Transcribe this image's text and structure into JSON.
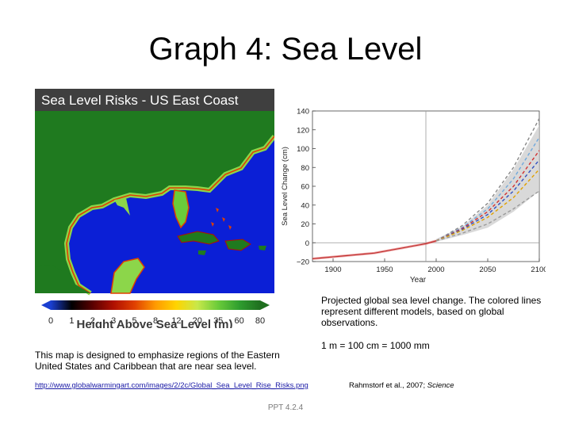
{
  "slide": {
    "title": "Graph 4: Sea Level",
    "footer": "PPT 4.2.4"
  },
  "map": {
    "title": "Sea Level Risks - US East Coast",
    "legend_title": "Height Above Sea Level (m)",
    "legend_ticks": [
      "0",
      "1",
      "2",
      "3",
      "5",
      "8",
      "12",
      "20",
      "35",
      "60",
      "80"
    ],
    "colors": {
      "title_bar": "#3f3f3f",
      "ocean": "#0b1fd6",
      "land": "#1f7a1f",
      "low_land": "#8cd64a"
    },
    "legend_colors": [
      "#1a3fd1",
      "#000000",
      "#5a0000",
      "#b01000",
      "#e04000",
      "#ff9a00",
      "#ffd400",
      "#c8e84a",
      "#6acb3a",
      "#2f9e2f",
      "#1f6f1f"
    ],
    "caption": "This map is designed to emphasize regions of the Eastern United States and Caribbean that are near sea level.",
    "source_url": "http://www.globalwarmingart.com/images/2/2c/Global_Sea_Level_Rise_Risks.png"
  },
  "chart_data": {
    "type": "line",
    "title": "",
    "xlabel": "Year",
    "ylabel": "Sea Level Change (cm)",
    "xlim": [
      1880,
      2100
    ],
    "ylim": [
      -20,
      140
    ],
    "xticks": [
      1900,
      1950,
      2000,
      2050,
      2100
    ],
    "yticks": [
      -20,
      0,
      20,
      40,
      60,
      80,
      100,
      120,
      140
    ],
    "reference_year": 1990,
    "observed": {
      "x": [
        1880,
        1890,
        1900,
        1910,
        1920,
        1930,
        1940,
        1950,
        1960,
        1970,
        1980,
        1990,
        2000
      ],
      "y": [
        -17,
        -16,
        -15,
        -14,
        -13,
        -12,
        -11,
        -9,
        -7,
        -5,
        -3,
        -1,
        2
      ]
    },
    "projection_band": {
      "x": [
        2000,
        2025,
        2050,
        2075,
        2100
      ],
      "lower": [
        1,
        8,
        16,
        33,
        55
      ],
      "upper": [
        4,
        17,
        40,
        78,
        125
      ]
    },
    "projections": [
      {
        "color": "#888888",
        "x": [
          2000,
          2025,
          2050,
          2075,
          2100
        ],
        "y": [
          2,
          18,
          42,
          80,
          132
        ]
      },
      {
        "color": "#6fa8dc",
        "x": [
          2000,
          2025,
          2050,
          2075,
          2100
        ],
        "y": [
          2,
          16,
          36,
          68,
          112
        ]
      },
      {
        "color": "#d03030",
        "x": [
          2000,
          2025,
          2050,
          2075,
          2100
        ],
        "y": [
          2,
          15,
          33,
          60,
          98
        ]
      },
      {
        "color": "#3050c0",
        "x": [
          2000,
          2025,
          2050,
          2075,
          2100
        ],
        "y": [
          2,
          14,
          30,
          55,
          88
        ]
      },
      {
        "color": "#e0a000",
        "x": [
          2000,
          2025,
          2050,
          2075,
          2100
        ],
        "y": [
          2,
          13,
          27,
          48,
          78
        ]
      },
      {
        "color": "#9a9a9a",
        "x": [
          2000,
          2025,
          2050,
          2075,
          2100
        ],
        "y": [
          2,
          10,
          20,
          36,
          55
        ]
      }
    ],
    "caption": "Projected global sea level change. The colored lines represent different models, based on global observations.",
    "conversion_note": "1 m = 100 cm = 1000 mm",
    "citation_authors": "Rahmstorf et al., 2007; ",
    "citation_journal": "Science"
  }
}
